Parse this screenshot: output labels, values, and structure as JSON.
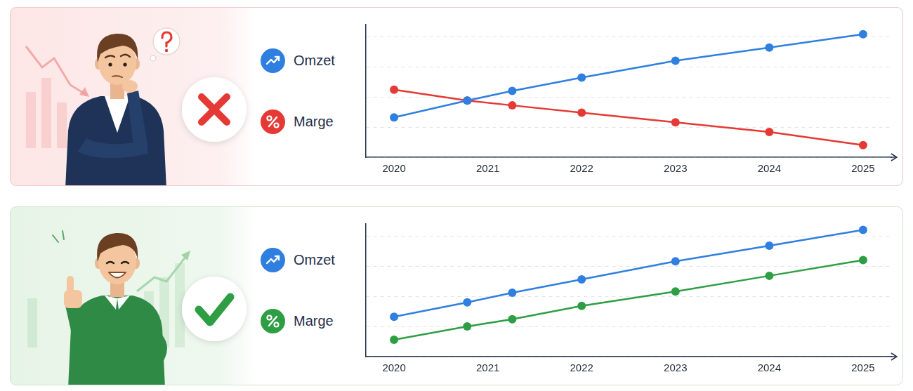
{
  "chart_data": [
    {
      "type": "line",
      "x": [
        2020,
        2020.78,
        2021.26,
        2022,
        2023,
        2024,
        2025
      ],
      "xlim": [
        2019.7,
        2025.3
      ],
      "xticks": [
        2020,
        2021,
        2022,
        2023,
        2024,
        2025
      ],
      "ylim": [
        0,
        110
      ],
      "yticks": [
        0,
        25,
        50,
        75,
        100
      ],
      "grid": "y",
      "tick_labels": "x",
      "legend": "left",
      "marker": "circle",
      "line_style": "solid",
      "series": [
        {
          "name": "Omzet",
          "color": "#2f7fe0",
          "values": [
            33,
            47,
            55,
            66,
            80,
            91,
            102
          ]
        },
        {
          "name": "Marge",
          "color": "#e53935",
          "values": [
            56,
            47,
            43,
            37,
            29,
            21,
            10
          ]
        }
      ]
    },
    {
      "type": "line",
      "x": [
        2020,
        2020.78,
        2021.26,
        2022,
        2023,
        2024,
        2025
      ],
      "xlim": [
        2019.7,
        2025.3
      ],
      "xticks": [
        2020,
        2021,
        2022,
        2023,
        2024,
        2025
      ],
      "ylim": [
        0,
        110
      ],
      "yticks": [
        0,
        25,
        50,
        75,
        100
      ],
      "grid": "y",
      "tick_labels": "x",
      "legend": "left",
      "marker": "circle",
      "line_style": "solid",
      "series": [
        {
          "name": "Omzet",
          "color": "#2f7fe0",
          "values": [
            33,
            45,
            53,
            64,
            79,
            92,
            105
          ]
        },
        {
          "name": "Marge",
          "color": "#2e9e44",
          "values": [
            14,
            25,
            31,
            42,
            54,
            67,
            80
          ]
        }
      ]
    }
  ]
}
